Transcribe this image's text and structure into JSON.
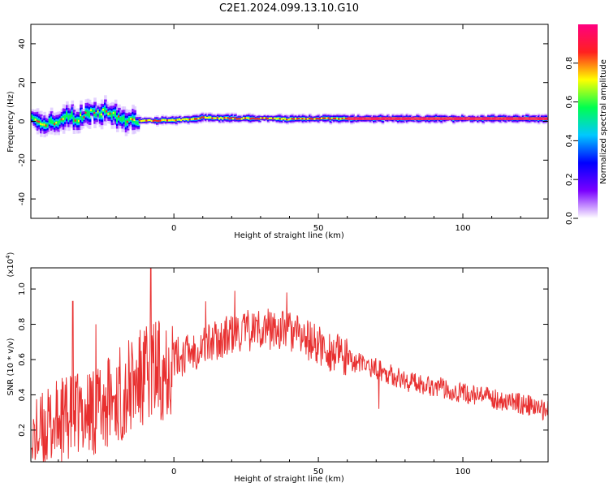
{
  "title": "C2E1.2024.099.13.10.G10",
  "chart_data": [
    {
      "type": "heatmap",
      "xlabel": "Height of straight line (km)",
      "ylabel": "Frequency (Hz)",
      "xlim": [
        -49.5,
        129.5
      ],
      "ylim": [
        -50,
        50
      ],
      "xticks": [
        0,
        50,
        100
      ],
      "yticks": [
        -40,
        -20,
        0,
        20,
        40
      ],
      "colorbar": {
        "label": "Normalized spectral amplitude",
        "ticks": [
          "0.0",
          "0.2",
          "0.4",
          "0.6",
          "0.8"
        ],
        "range": [
          0,
          1
        ],
        "colormap": [
          "#ffffff",
          "#7a00ff",
          "#0000ff",
          "#00c8ff",
          "#00ff50",
          "#ffff00",
          "#ff2020",
          "#ff0080"
        ]
      },
      "tracks": [
        {
          "x": [
            -49,
            -45,
            -40,
            -36,
            -33,
            -30,
            -27,
            -24,
            -21,
            -18,
            -15,
            -12,
            -5,
            0,
            5,
            10,
            20,
            30,
            40,
            50,
            60,
            70,
            80,
            90,
            100,
            110,
            120,
            129
          ],
          "y": [
            1,
            -2,
            0,
            3,
            1,
            5,
            4,
            5,
            3,
            1,
            0.5,
            0.3,
            0.5,
            0.5,
            1,
            2,
            1.5,
            1.5,
            1.2,
            1.5,
            1.3,
            1.4,
            1.4,
            1.4,
            1.4,
            1.4,
            1.4,
            1.4
          ]
        }
      ]
    },
    {
      "type": "line",
      "xlabel": "Height of straight line (km)",
      "ylabel": "SNR (10 * v/v)",
      "multiplier": "(x10",
      "multiplier_exp": "4",
      "xlim": [
        -49.5,
        129.5
      ],
      "ylim": [
        0.02,
        1.12
      ],
      "xticks": [
        0,
        50,
        100
      ],
      "yticks": [
        0.2,
        0.4,
        0.6,
        0.8,
        1.0
      ],
      "color": "#e83030",
      "envelope": [
        {
          "x": -49,
          "y": 0.15
        },
        {
          "x": -40,
          "y": 0.25
        },
        {
          "x": -30,
          "y": 0.3
        },
        {
          "x": -20,
          "y": 0.38
        },
        {
          "x": -10,
          "y": 0.5
        },
        {
          "x": 0,
          "y": 0.6
        },
        {
          "x": 10,
          "y": 0.68
        },
        {
          "x": 20,
          "y": 0.74
        },
        {
          "x": 30,
          "y": 0.78
        },
        {
          "x": 40,
          "y": 0.76
        },
        {
          "x": 50,
          "y": 0.68
        },
        {
          "x": 60,
          "y": 0.6
        },
        {
          "x": 70,
          "y": 0.55
        },
        {
          "x": 80,
          "y": 0.48
        },
        {
          "x": 90,
          "y": 0.45
        },
        {
          "x": 100,
          "y": 0.41
        },
        {
          "x": 110,
          "y": 0.38
        },
        {
          "x": 120,
          "y": 0.35
        },
        {
          "x": 129,
          "y": 0.31
        }
      ],
      "spikes": [
        {
          "x": -49,
          "y": 0.04
        },
        {
          "x": -35,
          "y": 0.93
        },
        {
          "x": -27,
          "y": 0.8
        },
        {
          "x": -8,
          "y": 1.12
        },
        {
          "x": 11,
          "y": 0.93
        },
        {
          "x": 21,
          "y": 0.99
        },
        {
          "x": 39,
          "y": 0.98
        },
        {
          "x": 71,
          "y": 0.32
        },
        {
          "x": 129,
          "y": 0.31
        }
      ]
    }
  ]
}
